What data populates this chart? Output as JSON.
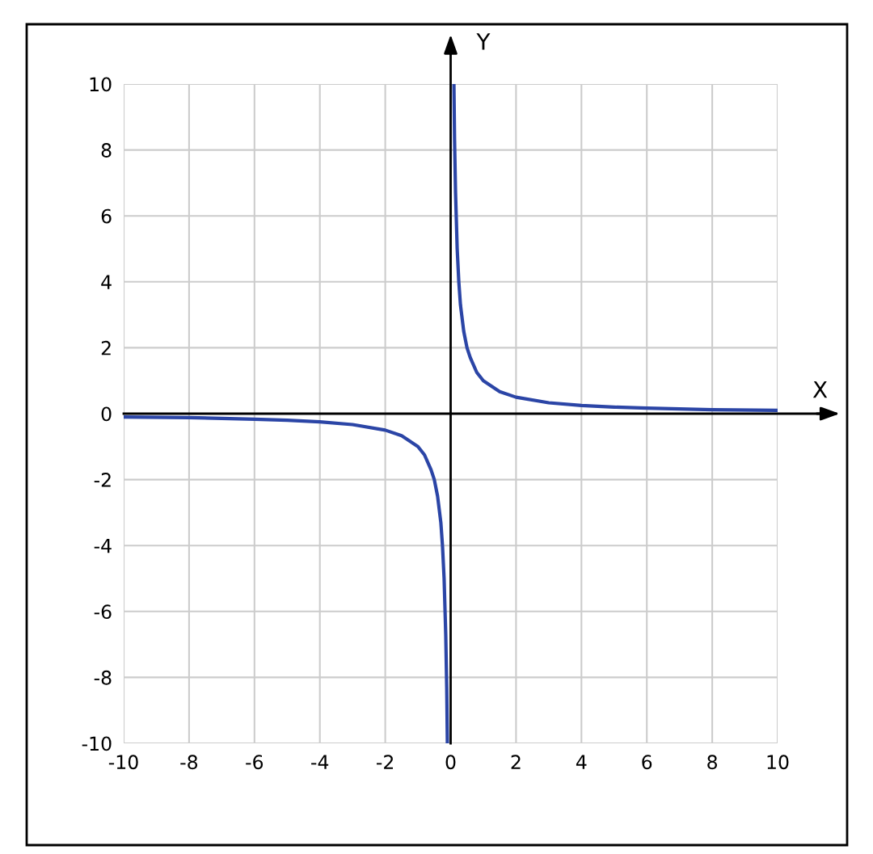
{
  "chart_data": {
    "type": "line",
    "xlabel": "X",
    "ylabel": "Y",
    "x": [
      -10,
      -8,
      -6,
      -5,
      -4,
      -3,
      -2,
      -1.5,
      -1,
      -0.8,
      -0.6,
      -0.5,
      -0.4,
      -0.3,
      -0.25,
      -0.2,
      -0.15,
      -0.12,
      -0.1,
      0,
      0.1,
      0.12,
      0.15,
      0.2,
      0.25,
      0.3,
      0.4,
      0.5,
      0.6,
      0.8,
      1,
      1.5,
      2,
      3,
      4,
      5,
      6,
      8,
      10
    ],
    "series": [
      {
        "color": "#2b45a6",
        "values": [
          -0.1,
          -0.12,
          -0.17,
          -0.2,
          -0.25,
          -0.33,
          -0.5,
          -0.67,
          -1,
          -1.25,
          -1.7,
          -2,
          -2.5,
          -3.3,
          -4,
          -5,
          -6.7,
          -8.3,
          -10,
          null,
          10,
          8.3,
          6.7,
          5,
          4,
          3.3,
          2.5,
          2,
          1.7,
          1.25,
          1,
          0.67,
          0.5,
          0.33,
          0.25,
          0.2,
          0.17,
          0.12,
          0.1
        ]
      }
    ],
    "xlim": [
      -10,
      10
    ],
    "ylim": [
      -10,
      10
    ],
    "xticks": [
      -10,
      -8,
      -6,
      -4,
      -2,
      0,
      2,
      4,
      6,
      8,
      10
    ],
    "yticks": [
      -10,
      -8,
      -6,
      -4,
      -2,
      0,
      2,
      4,
      6,
      8,
      10
    ],
    "grid": true,
    "marker": "none",
    "line_style": "solid"
  }
}
